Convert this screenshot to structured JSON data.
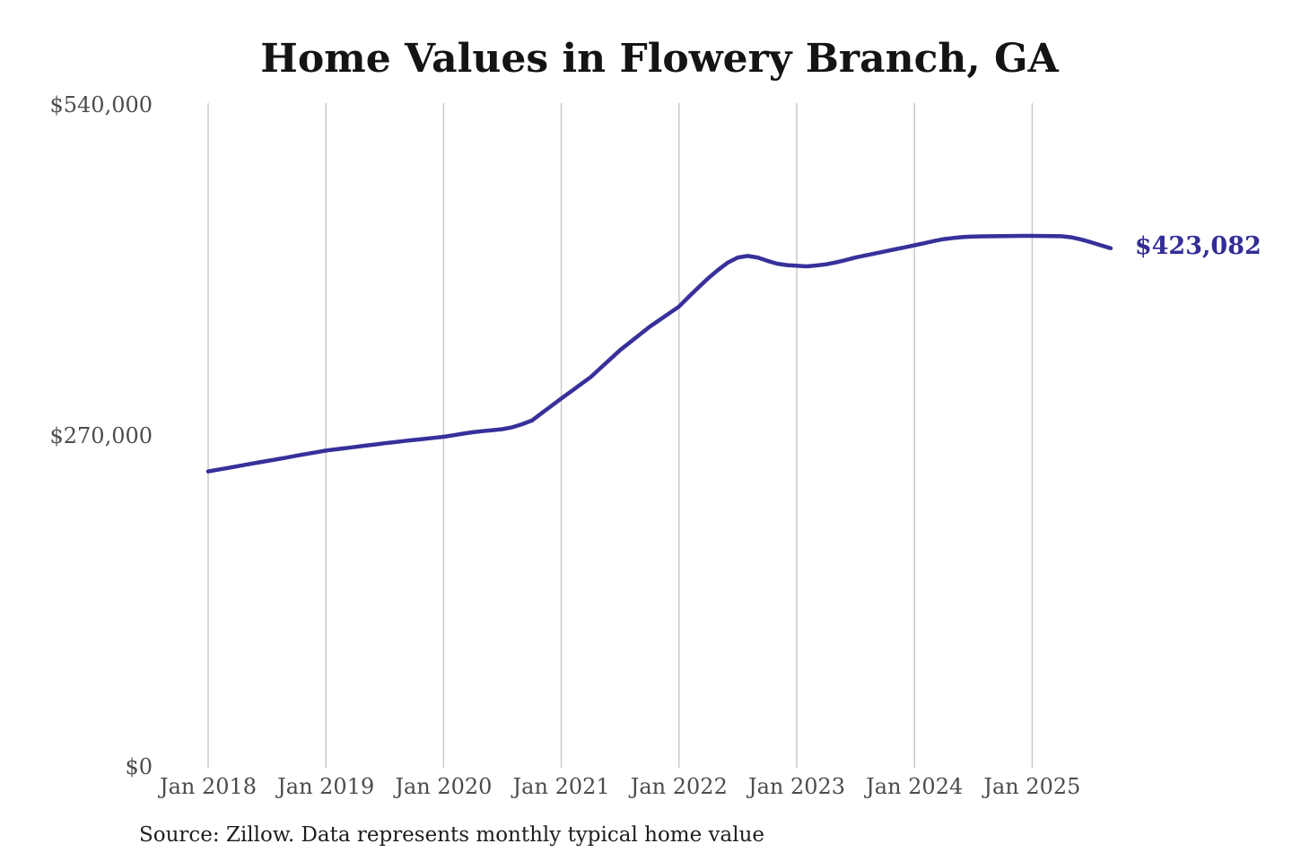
{
  "page": {
    "background": "#ffffff"
  },
  "chart_data": {
    "type": "line",
    "title": "Home Values in Flowery Branch, GA",
    "source": "Source: Zillow. Data represents monthly typical home value",
    "end_label": "$423,082",
    "end_value": 423082,
    "line_color": "#37309b",
    "grid_color": "#c6c6c6",
    "tick_label_color": "#4c4c4c",
    "end_label_color": "#332d96",
    "title_color": "#141414",
    "grid": "vertical-only",
    "legend": "none",
    "xlabel": "",
    "ylabel": "",
    "ylim": [
      0,
      540000
    ],
    "y_ticks": [
      {
        "label": "$0",
        "value": 0
      },
      {
        "label": "$270,000",
        "value": 270000
      },
      {
        "label": "$540,000",
        "value": 540000
      }
    ],
    "x_tick_labels": [
      "Jan 2018",
      "Jan 2019",
      "Jan 2020",
      "Jan 2021",
      "Jan 2022",
      "Jan 2023",
      "Jan 2024",
      "Jan 2025"
    ],
    "frequency": "monthly",
    "start_month": "2018-01",
    "end_month": "2025-09",
    "values": [
      241000,
      242400,
      243800,
      245300,
      246700,
      248100,
      249500,
      250900,
      252300,
      253800,
      255200,
      256600,
      258000,
      259000,
      260000,
      261000,
      262000,
      263000,
      264000,
      264900,
      265800,
      266700,
      267500,
      268400,
      269300,
      270500,
      271800,
      273000,
      273900,
      274700,
      275500,
      277000,
      279500,
      282500,
      288500,
      294500,
      300500,
      306300,
      312200,
      318000,
      325300,
      332700,
      340000,
      346300,
      352700,
      359000,
      364500,
      370000,
      375500,
      383500,
      391300,
      398800,
      405500,
      411500,
      415500,
      416800,
      415500,
      412800,
      410500,
      409300,
      408800,
      408300,
      409000,
      410000,
      411500,
      413500,
      415500,
      417200,
      418800,
      420500,
      422200,
      423800,
      425500,
      427200,
      429000,
      430500,
      431500,
      432200,
      432600,
      432800,
      432900,
      433000,
      433100,
      433200,
      433200,
      433100,
      433000,
      432900,
      432000,
      430200,
      428000,
      425500,
      423082
    ]
  }
}
